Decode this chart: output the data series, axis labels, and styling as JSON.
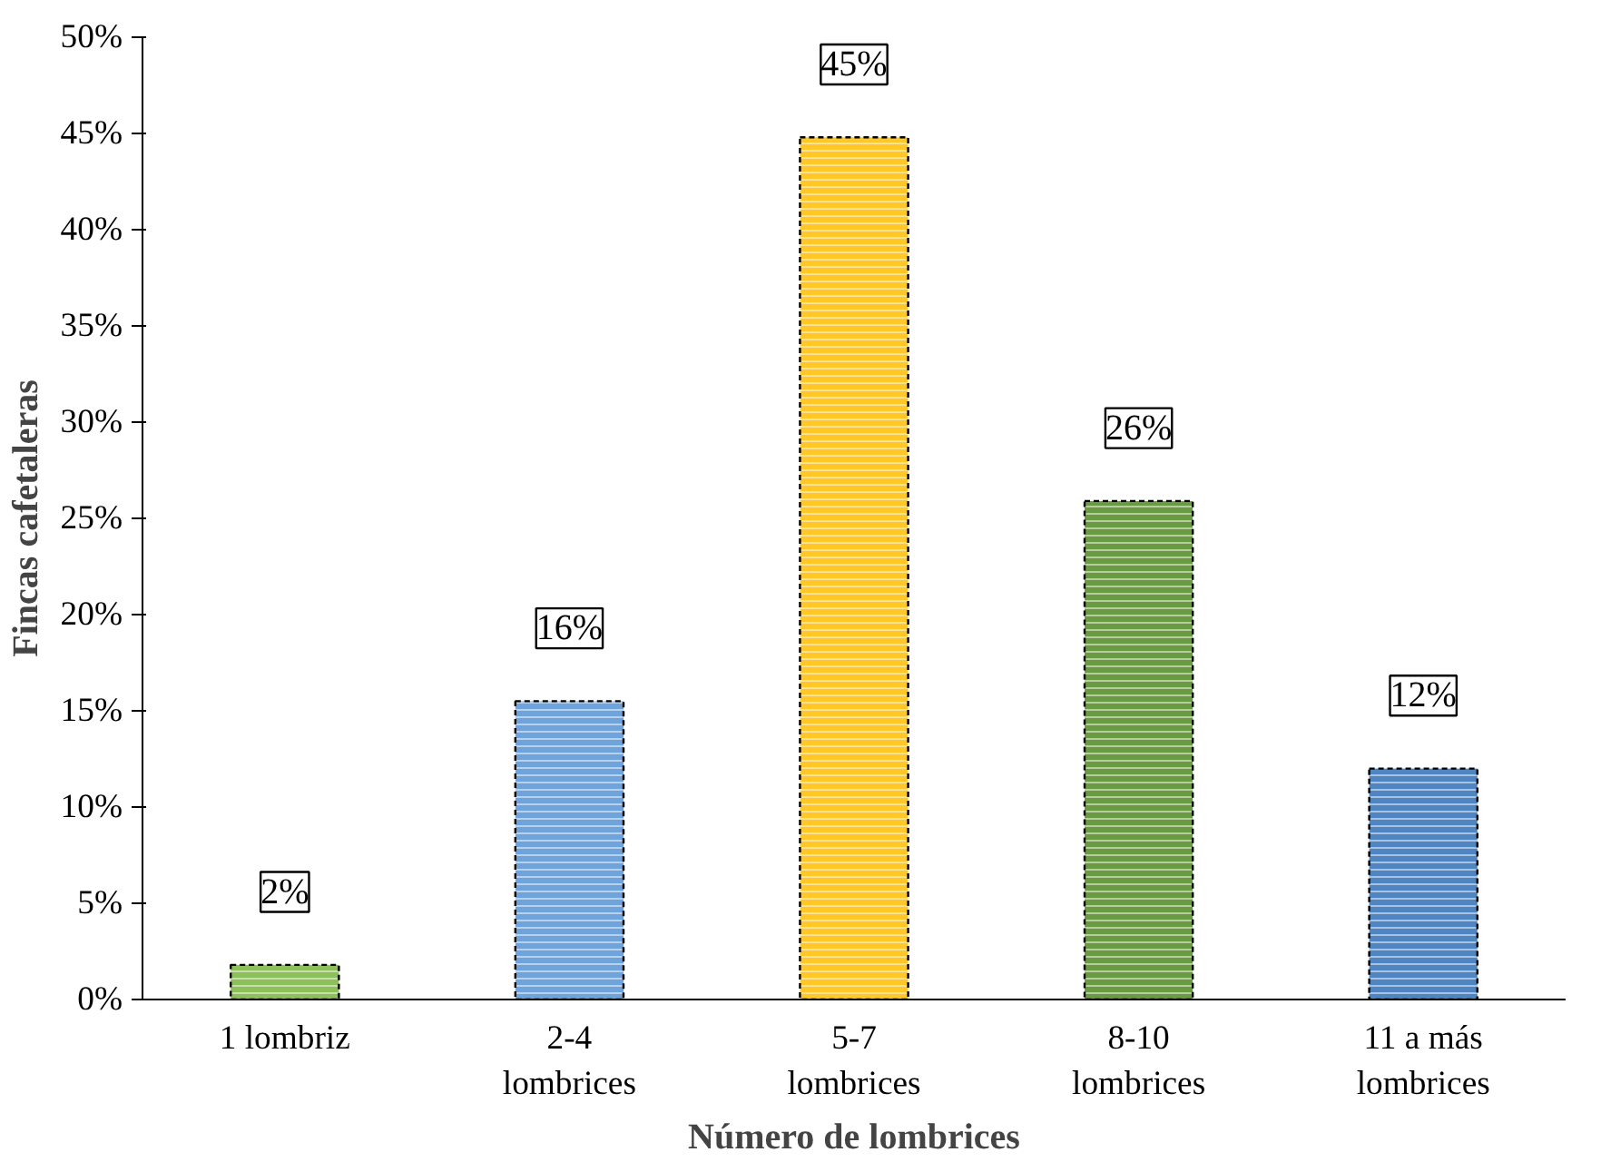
{
  "chart_data": {
    "type": "bar",
    "xlabel": "Número de lombrices",
    "ylabel": "Fincas cafetaleras",
    "categories": [
      "1 lombriz",
      "2-4 lombrices",
      "5-7 lombrices",
      "8-10 lombrices",
      "11 a más lombrices"
    ],
    "values": [
      1.8,
      15.5,
      44.8,
      25.9,
      12.0
    ],
    "colors": [
      "#8dbf5a",
      "#6fa3dc",
      "#ffc728",
      "#6a9a42",
      "#4f85c0"
    ],
    "value_labels": [
      "2%",
      "16%",
      "45%",
      "26%",
      "12%"
    ],
    "ylim": [
      0,
      50
    ],
    "yticks": [
      {
        "value": 0,
        "label": "0%"
      },
      {
        "value": 5,
        "label": "5%"
      },
      {
        "value": 10,
        "label": "10%"
      },
      {
        "value": 15,
        "label": "15%"
      },
      {
        "value": 20,
        "label": "20%"
      },
      {
        "value": 25,
        "label": "25%"
      },
      {
        "value": 30,
        "label": "30%"
      },
      {
        "value": 35,
        "label": "35%"
      },
      {
        "value": 40,
        "label": "40%"
      },
      {
        "value": 45,
        "label": "45%"
      },
      {
        "value": 50,
        "label": "50%"
      }
    ],
    "grid": false
  }
}
